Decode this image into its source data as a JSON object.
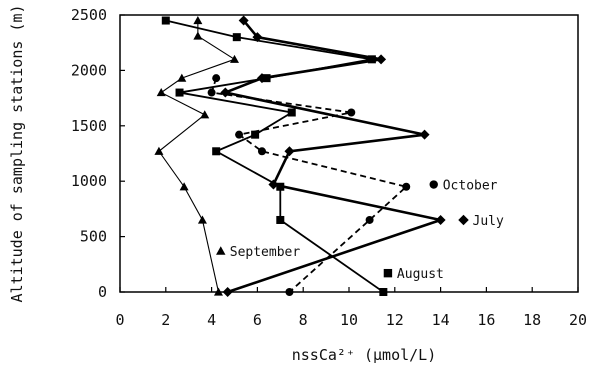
{
  "chart_data": {
    "type": "line",
    "xlabel": "nssCa²⁺ (μmol/L)",
    "ylabel": "Altitude of sampling stations (m)",
    "xlim": [
      0,
      20
    ],
    "ylim": [
      0,
      2500
    ],
    "xticks": [
      0,
      2,
      4,
      6,
      8,
      10,
      12,
      14,
      16,
      18,
      20
    ],
    "yticks": [
      0,
      500,
      1000,
      1500,
      2000,
      2500
    ],
    "grid": false,
    "legend": "inline labels next to series",
    "series": [
      {
        "name": "July",
        "marker": "diamond",
        "line": "solid-thick",
        "color": "#000000",
        "points": [
          [
            5.4,
            2450
          ],
          [
            6.0,
            2300
          ],
          [
            11.4,
            2100
          ],
          [
            6.2,
            1930
          ],
          [
            4.6,
            1800
          ],
          [
            13.3,
            1420
          ],
          [
            7.4,
            1270
          ],
          [
            6.7,
            970
          ],
          [
            14.0,
            650
          ],
          [
            4.7,
            0
          ]
        ]
      },
      {
        "name": "August",
        "marker": "square",
        "line": "solid",
        "color": "#000000",
        "points": [
          [
            2.0,
            2450
          ],
          [
            5.1,
            2300
          ],
          [
            11.0,
            2100
          ],
          [
            6.4,
            1930
          ],
          [
            2.6,
            1800
          ],
          [
            7.5,
            1620
          ],
          [
            5.9,
            1420
          ],
          [
            4.2,
            1270
          ],
          [
            7.0,
            950
          ],
          [
            7.0,
            650
          ],
          [
            11.5,
            0
          ]
        ]
      },
      {
        "name": "September",
        "marker": "triangle",
        "line": "solid-thin",
        "color": "#000000",
        "points": [
          [
            3.4,
            2450
          ],
          [
            3.4,
            2310
          ],
          [
            5.0,
            2100
          ],
          [
            2.7,
            1930
          ],
          [
            1.8,
            1800
          ],
          [
            3.7,
            1600
          ],
          [
            1.7,
            1270
          ],
          [
            2.8,
            950
          ],
          [
            3.6,
            650
          ],
          [
            4.3,
            0
          ]
        ]
      },
      {
        "name": "October",
        "marker": "circle",
        "line": "dashed",
        "color": "#000000",
        "points": [
          [
            4.2,
            1930
          ],
          [
            4.0,
            1800
          ],
          [
            10.1,
            1620
          ],
          [
            5.2,
            1420
          ],
          [
            6.2,
            1270
          ],
          [
            12.5,
            950
          ],
          [
            10.9,
            650
          ],
          [
            7.4,
            0
          ]
        ]
      }
    ],
    "annotations": [
      {
        "text": "October",
        "marker": "circle",
        "x": 13.7,
        "y": 970
      },
      {
        "text": "July",
        "marker": "diamond",
        "x": 15.0,
        "y": 650
      },
      {
        "text": "September",
        "marker": "triangle",
        "x": 4.4,
        "y": 370
      },
      {
        "text": "August",
        "marker": "square",
        "x": 11.7,
        "y": 170
      }
    ]
  }
}
